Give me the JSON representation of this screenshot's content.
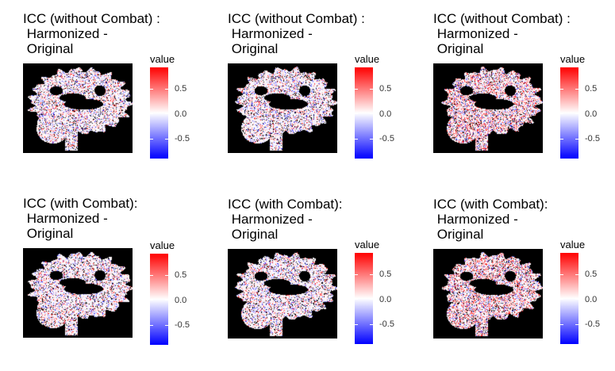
{
  "chart_data": [
    {
      "type": "heatmap",
      "title_lines": [
        "ICC (without Combat) :",
        " Harmonized -",
        " Original"
      ],
      "legend_title": "value",
      "legend_ticks": [
        "0.5",
        "0.0",
        "-0.5"
      ],
      "value_range": [
        -0.9,
        0.9
      ],
      "colors": {
        "low": "#0000ff",
        "mid": "#ffffff",
        "high": "#ff0000",
        "background": "#000000"
      },
      "view": "sagittal-1",
      "seed": 11
    },
    {
      "type": "heatmap",
      "title_lines": [
        "ICC (without Combat) :",
        " Harmonized -",
        " Original"
      ],
      "legend_title": "value",
      "legend_ticks": [
        "0.5",
        "0.0",
        "-0.5"
      ],
      "value_range": [
        -0.9,
        0.9
      ],
      "colors": {
        "low": "#0000ff",
        "mid": "#ffffff",
        "high": "#ff0000",
        "background": "#000000"
      },
      "view": "sagittal-2",
      "seed": 23
    },
    {
      "type": "heatmap",
      "title_lines": [
        "ICC (without Combat) :",
        " Harmonized -",
        " Original"
      ],
      "legend_title": "value",
      "legend_ticks": [
        "0.5",
        "0.0",
        "-0.5"
      ],
      "value_range": [
        -0.9,
        0.9
      ],
      "colors": {
        "low": "#0000ff",
        "mid": "#ffffff",
        "high": "#ff0000",
        "background": "#000000"
      },
      "view": "sagittal-3",
      "seed": 37
    },
    {
      "type": "heatmap",
      "title_lines": [
        "ICC (with Combat):",
        " Harmonized -",
        " Original"
      ],
      "legend_title": "value",
      "legend_ticks": [
        "0.5",
        "0.0",
        "-0.5"
      ],
      "value_range": [
        -0.9,
        0.9
      ],
      "colors": {
        "low": "#0000ff",
        "mid": "#ffffff",
        "high": "#ff0000",
        "background": "#000000"
      },
      "view": "sagittal-1",
      "seed": 41
    },
    {
      "type": "heatmap",
      "title_lines": [
        "ICC (with Combat):",
        " Harmonized -",
        " Original"
      ],
      "legend_title": "value",
      "legend_ticks": [
        "0.5",
        "0.0",
        "-0.5"
      ],
      "value_range": [
        -0.9,
        0.9
      ],
      "colors": {
        "low": "#0000ff",
        "mid": "#ffffff",
        "high": "#ff0000",
        "background": "#000000"
      },
      "view": "sagittal-2",
      "seed": 53
    },
    {
      "type": "heatmap",
      "title_lines": [
        "ICC (with Combat):",
        " Harmonized -",
        " Original"
      ],
      "legend_title": "value",
      "legend_ticks": [
        "0.5",
        "0.0",
        "-0.5"
      ],
      "value_range": [
        -0.9,
        0.9
      ],
      "colors": {
        "low": "#0000ff",
        "mid": "#ffffff",
        "high": "#ff0000",
        "background": "#000000"
      },
      "view": "sagittal-3",
      "seed": 67
    }
  ]
}
